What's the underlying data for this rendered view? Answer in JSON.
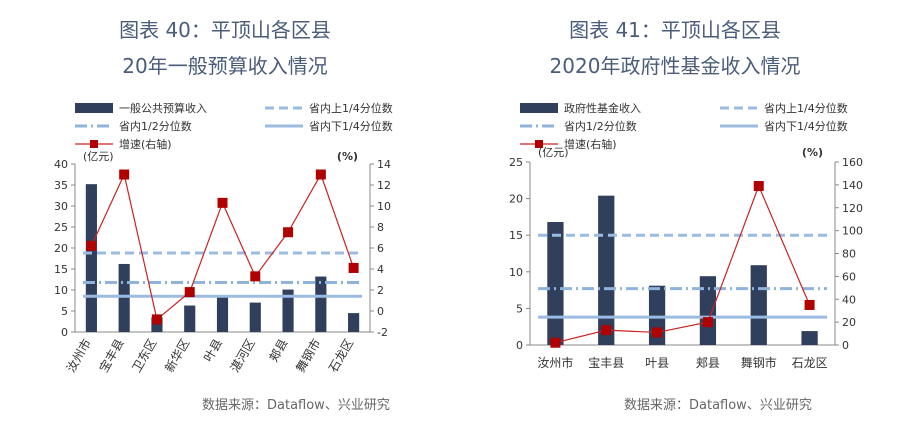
{
  "charts": [
    {
      "title_line1": "图表 40：平顶山各区县",
      "title_line2": "20年一般预算收入情况",
      "source": "数据来源：Dataflow、兴业研究",
      "colors": {
        "bar": "#2f3f5c",
        "upper": "#9bbbe0",
        "median": "#8fb3da",
        "lower": "#9bbbe0",
        "growth": "#cc2222",
        "growth_marker": "#b00000"
      },
      "legend": [
        {
          "key": "bar",
          "label": "一般公共预算收入"
        },
        {
          "key": "upper",
          "label": "省内上1/4分位数"
        },
        {
          "key": "median",
          "label": "省内1/2分位数"
        },
        {
          "key": "lower",
          "label": "省内下1/4分位数"
        },
        {
          "key": "growth",
          "label": "增速(右轴)"
        }
      ],
      "y_left_unit": "(亿元)",
      "y_right_unit": "(%)",
      "chart_data": {
        "type": "bar",
        "categories": [
          "汝州市",
          "宝丰县",
          "卫东区",
          "新华区",
          "叶县",
          "湛河区",
          "郏县",
          "舞钢市",
          "石龙区"
        ],
        "series": [
          {
            "name": "一般公共预算收入",
            "axis": "left",
            "values": [
              35.2,
              16.2,
              3.5,
              6.3,
              8.8,
              7.0,
              10.1,
              13.2,
              4.5
            ]
          },
          {
            "name": "增速(右轴)",
            "axis": "right",
            "type": "line",
            "values": [
              6.2,
              13.0,
              -0.8,
              1.8,
              10.3,
              3.3,
              7.5,
              13.0,
              4.1
            ]
          }
        ],
        "reference_lines": [
          {
            "name": "省内上1/4分位数",
            "axis": "left",
            "value": 18.8,
            "style": "dashed"
          },
          {
            "name": "省内1/2分位数",
            "axis": "left",
            "value": 11.8,
            "style": "dashdot"
          },
          {
            "name": "省内下1/4分位数",
            "axis": "left",
            "value": 8.5,
            "style": "solid"
          }
        ],
        "ylim_left": [
          0,
          40
        ],
        "yticks_left": [
          "0",
          "5",
          "10",
          "15",
          "20",
          "25",
          "30",
          "35",
          "40"
        ],
        "ylim_right": [
          -2,
          14
        ],
        "yticks_right": [
          "-2",
          "0",
          "2",
          "4",
          "6",
          "8",
          "10",
          "12",
          "14"
        ],
        "xlabel_rotation": "vertical",
        "grid": false,
        "legend_position": "top"
      }
    },
    {
      "title_line1": "图表 41：平顶山各区县",
      "title_line2": "2020年政府性基金收入情况",
      "source": "数据来源：Dataflow、兴业研究",
      "colors": {
        "bar": "#2f3f5c",
        "upper": "#9bbbe0",
        "median": "#8fb3da",
        "lower": "#9bbbe0",
        "growth": "#cc2222",
        "growth_marker": "#b00000"
      },
      "legend": [
        {
          "key": "bar",
          "label": "政府性基金收入"
        },
        {
          "key": "upper",
          "label": "省内上1/4分位数"
        },
        {
          "key": "median",
          "label": "省内1/2分位数"
        },
        {
          "key": "lower",
          "label": "省内下1/4分位数"
        },
        {
          "key": "growth",
          "label": "增速(右轴)"
        }
      ],
      "y_left_unit": "(亿元)",
      "y_right_unit": "(%)",
      "chart_data": {
        "type": "bar",
        "categories": [
          "汝州市",
          "宝丰县",
          "叶县",
          "郏县",
          "舞钢市",
          "石龙区"
        ],
        "series": [
          {
            "name": "政府性基金收入",
            "axis": "left",
            "values": [
              16.8,
              20.4,
              8.1,
              9.4,
              10.9,
              1.9
            ]
          },
          {
            "name": "增速(右轴)",
            "axis": "right",
            "type": "line",
            "values": [
              2,
              13,
              11,
              20,
              139,
              35
            ]
          }
        ],
        "reference_lines": [
          {
            "name": "省内上1/4分位数",
            "axis": "left",
            "value": 15.0,
            "style": "dashed"
          },
          {
            "name": "省内1/2分位数",
            "axis": "left",
            "value": 7.7,
            "style": "dashdot"
          },
          {
            "name": "省内下1/4分位数",
            "axis": "left",
            "value": 3.8,
            "style": "solid"
          }
        ],
        "ylim_left": [
          0,
          25
        ],
        "yticks_left": [
          "0",
          "5",
          "10",
          "15",
          "20",
          "25"
        ],
        "ylim_right": [
          0,
          160
        ],
        "yticks_right": [
          "0",
          "20",
          "40",
          "60",
          "80",
          "100",
          "120",
          "140",
          "160"
        ],
        "xlabel_rotation": "horizontal",
        "grid": false,
        "legend_position": "top"
      }
    }
  ]
}
